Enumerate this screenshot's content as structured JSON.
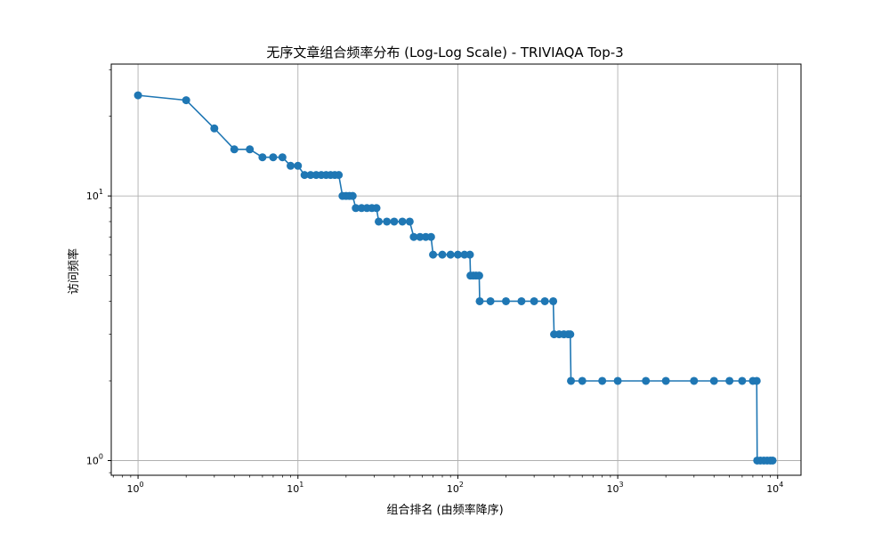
{
  "chart_data": {
    "type": "line",
    "title": "无序文章组合频率分布 (Log-Log Scale) - TRIVIAQA Top-3",
    "xlabel": "组合排名 (由频率降序)",
    "ylabel": "访问频率",
    "xscale": "log",
    "yscale": "log",
    "xlim": [
      0.68,
      14000
    ],
    "ylim": [
      0.88,
      31.5
    ],
    "x_ticks": [
      {
        "value": 1,
        "base": "10",
        "exp": "0"
      },
      {
        "value": 10,
        "base": "10",
        "exp": "1"
      },
      {
        "value": 100,
        "base": "10",
        "exp": "2"
      },
      {
        "value": 1000,
        "base": "10",
        "exp": "3"
      },
      {
        "value": 10000,
        "base": "10",
        "exp": "4"
      }
    ],
    "y_ticks": [
      {
        "value": 1,
        "base": "10",
        "exp": "0"
      },
      {
        "value": 10,
        "base": "10",
        "exp": "1"
      }
    ],
    "grid": true,
    "color": "#1f77b4",
    "series": [
      {
        "points": [
          [
            1,
            24
          ],
          [
            2,
            23
          ],
          [
            3,
            18
          ],
          [
            4,
            15
          ],
          [
            5,
            15
          ],
          [
            6,
            14
          ],
          [
            7,
            14
          ],
          [
            8,
            14
          ],
          [
            9,
            13
          ],
          [
            10,
            13
          ],
          [
            11,
            12
          ],
          [
            12,
            12
          ],
          [
            13,
            12
          ],
          [
            14,
            12
          ],
          [
            15,
            12
          ],
          [
            16,
            12
          ],
          [
            17,
            12
          ],
          [
            18,
            12
          ],
          [
            19,
            10
          ],
          [
            20,
            10
          ],
          [
            21,
            10
          ],
          [
            22,
            10
          ],
          [
            23,
            9
          ],
          [
            25,
            9
          ],
          [
            27,
            9
          ],
          [
            29,
            9
          ],
          [
            31,
            9
          ],
          [
            32,
            8
          ],
          [
            36,
            8
          ],
          [
            40,
            8
          ],
          [
            45,
            8
          ],
          [
            50,
            8
          ],
          [
            53,
            7
          ],
          [
            58,
            7
          ],
          [
            63,
            7
          ],
          [
            68,
            7
          ],
          [
            70,
            6
          ],
          [
            80,
            6
          ],
          [
            90,
            6
          ],
          [
            100,
            6
          ],
          [
            110,
            6
          ],
          [
            119,
            6
          ],
          [
            120,
            5
          ],
          [
            125,
            5
          ],
          [
            130,
            5
          ],
          [
            136,
            5
          ],
          [
            137,
            4
          ],
          [
            160,
            4
          ],
          [
            200,
            4
          ],
          [
            250,
            4
          ],
          [
            300,
            4
          ],
          [
            350,
            4
          ],
          [
            395,
            4
          ],
          [
            400,
            3
          ],
          [
            430,
            3
          ],
          [
            460,
            3
          ],
          [
            490,
            3
          ],
          [
            505,
            3
          ],
          [
            510,
            2
          ],
          [
            600,
            2
          ],
          [
            800,
            2
          ],
          [
            1000,
            2
          ],
          [
            1500,
            2
          ],
          [
            2000,
            2
          ],
          [
            3000,
            2
          ],
          [
            4000,
            2
          ],
          [
            5000,
            2
          ],
          [
            6000,
            2
          ],
          [
            7000,
            2
          ],
          [
            7400,
            2
          ],
          [
            7450,
            1
          ],
          [
            7800,
            1
          ],
          [
            8200,
            1
          ],
          [
            8600,
            1
          ],
          [
            9000,
            1
          ],
          [
            9300,
            1
          ]
        ]
      }
    ]
  }
}
